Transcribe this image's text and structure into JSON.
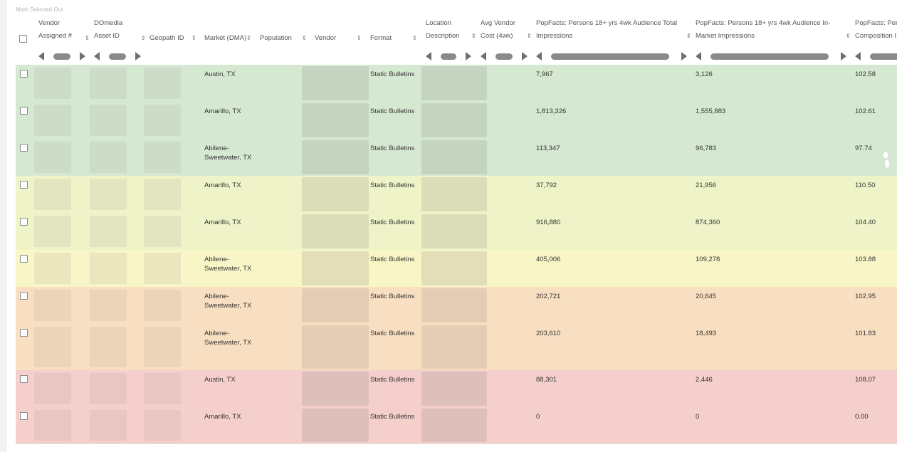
{
  "toolbar": {
    "mark_selected_out": "Mark Selected Out"
  },
  "columns": {
    "vendor_assigned_l1": "Vendor",
    "vendor_assigned_l2": "Assigned #",
    "domedia_l1": "DOmedia",
    "domedia_l2": "Asset ID",
    "geopath": "Geopath ID",
    "market": "Market (DMA)",
    "population": "Population",
    "vendor": "Vendor",
    "format": "Format",
    "location_l1": "Location",
    "location_l2": "Description",
    "avg_cost_l1": "Avg Vendor",
    "avg_cost_l2": "Cost (4wk)",
    "total_imp_l1": "PopFacts: Persons 18+ yrs 4wk Audience Total",
    "total_imp_l2": "Impressions",
    "inmarket_l1": "PopFacts: Persons 18+ yrs 4wk Audience In-",
    "inmarket_l2": "Market Impressions",
    "comp_l1": "PopFacts: Pers",
    "comp_l2": "Composition I"
  },
  "row_colors": {
    "green": "#d5e8d1",
    "yellow_green": "#eef3c8",
    "yellow": "#f8f5c6",
    "orange": "#f9dfc1",
    "red": "#f5cfcb"
  },
  "rows": [
    {
      "market_l1": "Austin, TX",
      "market_l2": "",
      "format": "Static Bulletins",
      "total_imp": "7,967",
      "inmarket_imp": "3,126",
      "composition": "102.58"
    },
    {
      "market_l1": "Amarillo, TX",
      "market_l2": "",
      "format": "Static Bulletins",
      "total_imp": "1,813,326",
      "inmarket_imp": "1,555,883",
      "composition": "102.61"
    },
    {
      "market_l1": "Abilene-",
      "market_l2": "Sweetwater, TX",
      "format": "Static Bulletins",
      "total_imp": "113,347",
      "inmarket_imp": "96,783",
      "composition": "97.74"
    },
    {
      "market_l1": "Amarillo, TX",
      "market_l2": "",
      "format": "Static Bulletins",
      "total_imp": "37,792",
      "inmarket_imp": "21,956",
      "composition": "110.50"
    },
    {
      "market_l1": "Amarillo, TX",
      "market_l2": "",
      "format": "Static Bulletins",
      "total_imp": "916,880",
      "inmarket_imp": "874,360",
      "composition": "104.40"
    },
    {
      "market_l1": "Abilene-",
      "market_l2": "Sweetwater, TX",
      "format": "Static Bulletins",
      "total_imp": "405,006",
      "inmarket_imp": "109,278",
      "composition": "103.88"
    },
    {
      "market_l1": "Abilene-",
      "market_l2": "Sweetwater, TX",
      "format": "Static Bulletins",
      "total_imp": "202,721",
      "inmarket_imp": "20,645",
      "composition": "102.95"
    },
    {
      "market_l1": "Abilene-",
      "market_l2": "Sweetwater, TX",
      "format": "Static Bulletins",
      "total_imp": "203,610",
      "inmarket_imp": "18,493",
      "composition": "101.83"
    },
    {
      "market_l1": "Austin, TX",
      "market_l2": "",
      "format": "Static Bulletins",
      "total_imp": "88,301",
      "inmarket_imp": "2,446",
      "composition": "108.07"
    },
    {
      "market_l1": "Amarillo, TX",
      "market_l2": "",
      "format": "Static Bulletins",
      "total_imp": "0",
      "inmarket_imp": "0",
      "composition": "0.00"
    }
  ]
}
